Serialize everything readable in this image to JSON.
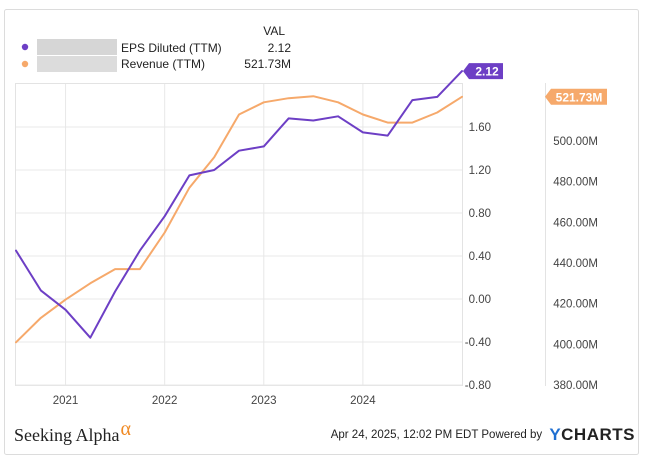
{
  "legend": {
    "header": "VAL",
    "items": [
      {
        "label": "EPS Diluted (TTM)",
        "value": "2.12",
        "color": "#6d3fc5"
      },
      {
        "label": "Revenue (TTM)",
        "value": "521.73M",
        "color": "#f6a96b"
      }
    ]
  },
  "footer": {
    "brand_left": "Seeking Alpha",
    "alpha_symbol": "α",
    "timestamp": "Apr 24, 2025, 12:02 PM EDT",
    "powered_by": "Powered by",
    "brand_right": "YCHARTS"
  },
  "chart_data": {
    "type": "line",
    "x_tick_labels": [
      "2021",
      "2022",
      "2023",
      "2024"
    ],
    "x_ticks": [
      2021.0,
      2022.0,
      2023.0,
      2024.0
    ],
    "xlim": [
      2020.5,
      2025.0
    ],
    "grid": true,
    "series": [
      {
        "name": "EPS Diluted (TTM)",
        "axis": "left",
        "color": "#6d3fc5",
        "end_label": "2.12",
        "x": [
          2020.5,
          2020.75,
          2021.0,
          2021.25,
          2021.5,
          2021.75,
          2022.0,
          2022.25,
          2022.5,
          2022.75,
          2023.0,
          2023.25,
          2023.5,
          2023.75,
          2024.0,
          2024.25,
          2024.5,
          2024.75,
          2025.0
        ],
        "values": [
          0.45,
          0.08,
          -0.1,
          -0.36,
          0.07,
          0.45,
          0.77,
          1.15,
          1.2,
          1.38,
          1.42,
          1.68,
          1.66,
          1.7,
          1.55,
          1.52,
          1.85,
          1.88,
          2.12
        ]
      },
      {
        "name": "Revenue (TTM)",
        "axis": "right",
        "color": "#f6a96b",
        "end_label": "521.73M",
        "x": [
          2020.5,
          2020.75,
          2021.0,
          2021.25,
          2021.5,
          2021.75,
          2022.0,
          2022.25,
          2022.5,
          2022.75,
          2023.0,
          2023.25,
          2023.5,
          2023.75,
          2024.0,
          2024.25,
          2024.5,
          2024.75,
          2025.0
        ],
        "values": [
          401,
          413,
          422,
          430,
          437,
          437,
          455,
          477,
          492,
          513,
          519,
          521,
          522,
          519,
          513,
          509,
          509,
          514,
          521.73
        ]
      }
    ],
    "y_left": {
      "ticks": [
        -0.8,
        -0.4,
        0.0,
        0.4,
        0.8,
        1.2,
        1.6
      ],
      "tick_labels": [
        "-0.80",
        "-0.40",
        "0.00",
        "0.40",
        "0.80",
        "1.20",
        "1.60"
      ],
      "ylim": [
        -0.8,
        2.0
      ]
    },
    "y_right": {
      "ticks": [
        380,
        400,
        420,
        440,
        460,
        480,
        500
      ],
      "tick_labels": [
        "380.00M",
        "400.00M",
        "420.00M",
        "440.00M",
        "460.00M",
        "480.00M",
        "500.00M"
      ],
      "ylim": [
        380,
        528
      ]
    }
  }
}
